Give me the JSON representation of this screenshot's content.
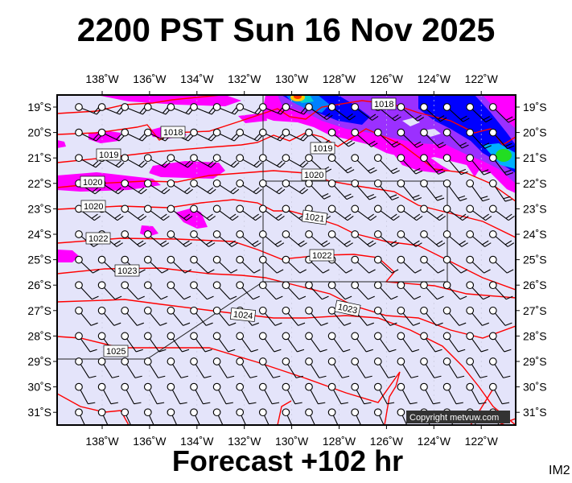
{
  "title": "2200 PST Sun 16 Nov 2025",
  "footer": "Forecast +102 hr",
  "image_id_label": "IM2",
  "copyright": "Copyright metvuw.com",
  "lon_labels": [
    "138˚W",
    "136˚W",
    "134˚W",
    "132˚W",
    "130˚W",
    "128˚W",
    "126˚W",
    "124˚W",
    "122˚W"
  ],
  "lat_labels": [
    "19˚S",
    "20˚S",
    "21˚S",
    "22˚S",
    "23˚S",
    "24˚S",
    "25˚S",
    "26˚S",
    "27˚S",
    "28˚S",
    "29˚S",
    "30˚S",
    "31˚S"
  ],
  "isobar_labels": [
    "1018",
    "1018",
    "1019",
    "1019",
    "1020",
    "1020",
    "1020",
    "1021",
    "1022",
    "1022",
    "1023",
    "1024",
    "1023",
    "1025"
  ],
  "colors": {
    "background": "#e4e4fa",
    "isobar": "#ff0000",
    "rain_light": "#ff00ff",
    "rain_mid": "#8a2be2",
    "rain_heavy": "#0000ff"
  }
}
